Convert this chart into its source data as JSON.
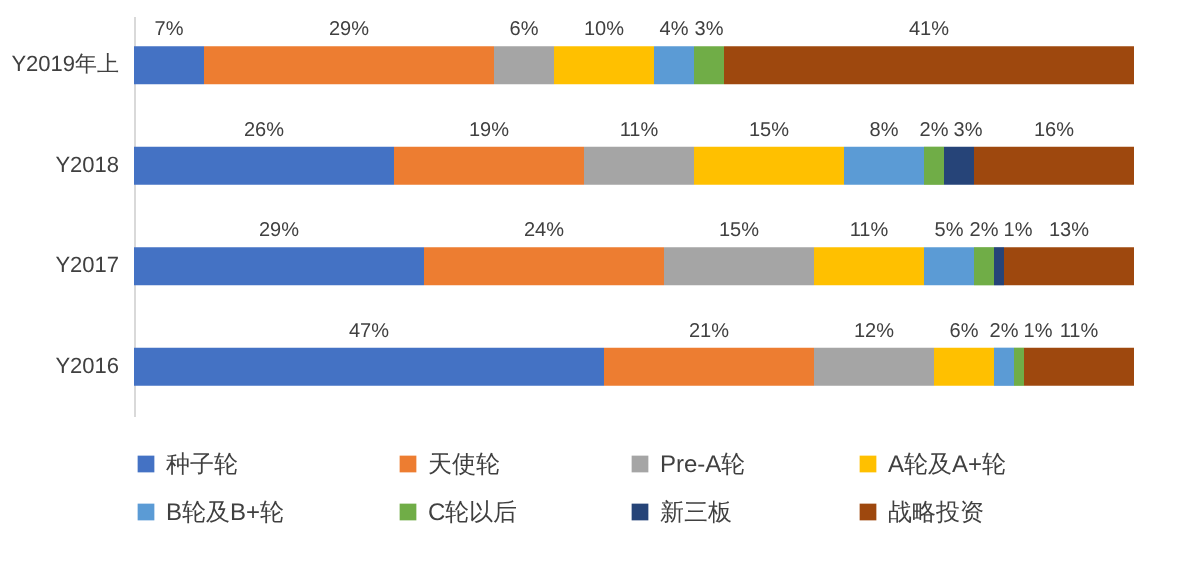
{
  "chart_data": {
    "type": "bar",
    "orientation": "horizontal",
    "stacked": true,
    "legend": "bottom",
    "tick_labels": "y",
    "grid": false,
    "categories": [
      "Y2019年上",
      "Y2018",
      "Y2017",
      "Y2016"
    ],
    "series": [
      {
        "name": "种子轮",
        "color": "#4472c4",
        "values": [
          7,
          26,
          29,
          47
        ],
        "value_labels": [
          "7%",
          "26%",
          "29%",
          "47%"
        ]
      },
      {
        "name": "天使轮",
        "color": "#ed7d31",
        "values": [
          29,
          19,
          24,
          21
        ],
        "value_labels": [
          "29%",
          "19%",
          "24%",
          "21%"
        ]
      },
      {
        "name": "Pre-A轮",
        "color": "#a5a5a5",
        "values": [
          6,
          11,
          15,
          12
        ],
        "value_labels": [
          "6%",
          "11%",
          "15%",
          "12%"
        ]
      },
      {
        "name": "A轮及A+轮",
        "color": "#ffc000",
        "values": [
          10,
          15,
          11,
          6
        ],
        "value_labels": [
          "10%",
          "15%",
          "11%",
          "6%"
        ]
      },
      {
        "name": "B轮及B+轮",
        "color": "#5b9bd5",
        "values": [
          4,
          8,
          5,
          2
        ],
        "value_labels": [
          "4%",
          "8%",
          "5%",
          "2%"
        ]
      },
      {
        "name": "C轮以后",
        "color": "#70ad47",
        "values": [
          3,
          2,
          2,
          1
        ],
        "value_labels": [
          "3%",
          "2%",
          "2%",
          "1%"
        ]
      },
      {
        "name": "新三板",
        "color": "#264478",
        "values": [
          null,
          3,
          1,
          null
        ],
        "value_labels": [
          null,
          "3%",
          "1%",
          null
        ]
      },
      {
        "name": "战略投资",
        "color": "#9e480e",
        "values": [
          41,
          16,
          13,
          11
        ],
        "value_labels": [
          "41%",
          "16%",
          "13%",
          "11%"
        ]
      }
    ]
  }
}
